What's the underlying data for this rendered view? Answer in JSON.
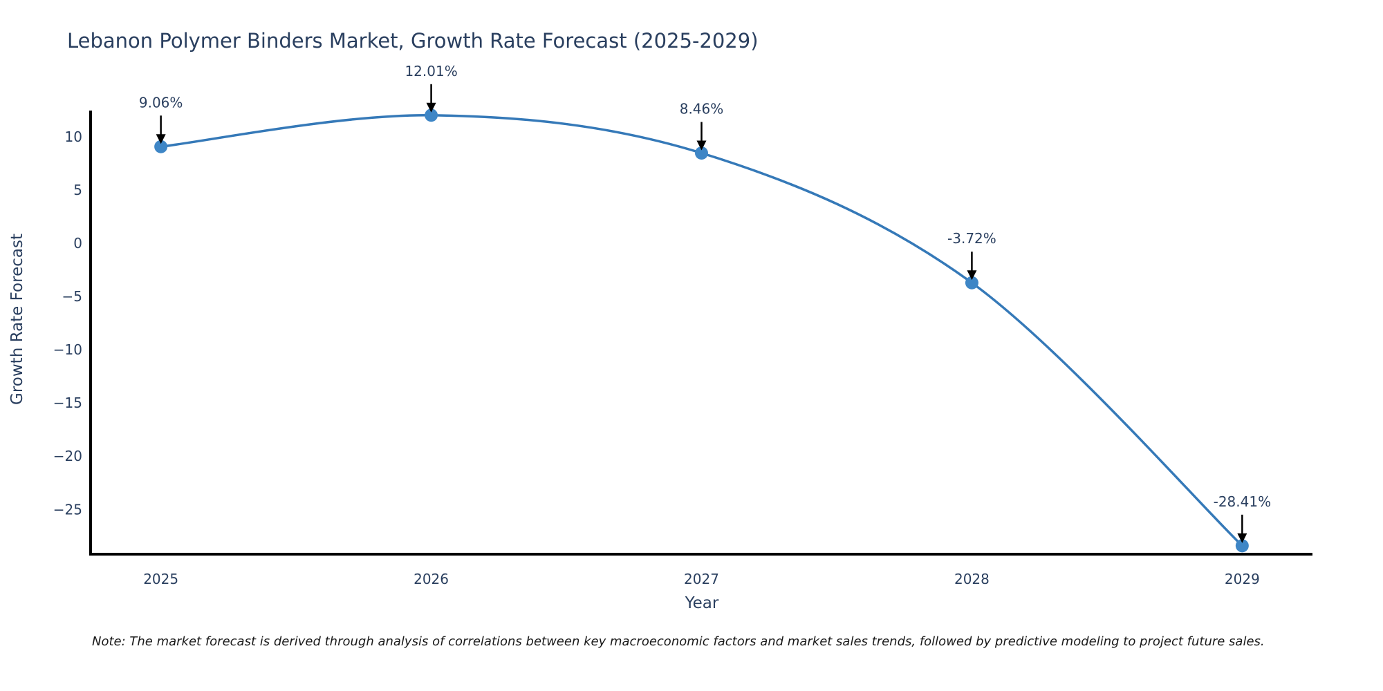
{
  "note": "Note: The market forecast is derived through analysis of correlations between key macroeconomic factors and market sales trends, followed by predictive modeling to project future sales.",
  "chart_data": {
    "type": "line",
    "title": "Lebanon Polymer Binders Market, Growth Rate Forecast (2025-2029)",
    "xlabel": "Year",
    "ylabel": "Growth Rate Forecast",
    "x": [
      2025,
      2026,
      2027,
      2028,
      2029
    ],
    "y": [
      9.06,
      12.01,
      8.46,
      -3.72,
      -28.41
    ],
    "point_labels": [
      "9.06%",
      "12.01%",
      "8.46%",
      "-3.72%",
      "-28.41%"
    ],
    "xticks": [
      2025,
      2026,
      2027,
      2028,
      2029
    ],
    "yticks": [
      10,
      5,
      0,
      -5,
      -10,
      -15,
      -20,
      -25
    ],
    "xlim": [
      2024.74,
      2029.26
    ],
    "ylim": [
      -29.2,
      12.45
    ],
    "grid": false,
    "legend": false,
    "line_shape": "spline",
    "colors": {
      "line": "#3579b8",
      "marker": "#3e86c6",
      "axis": "#000000",
      "tick_label": "#2a3f5f",
      "annotation_text": "#2a3f5f",
      "annotation_arrow": "#000000"
    }
  }
}
